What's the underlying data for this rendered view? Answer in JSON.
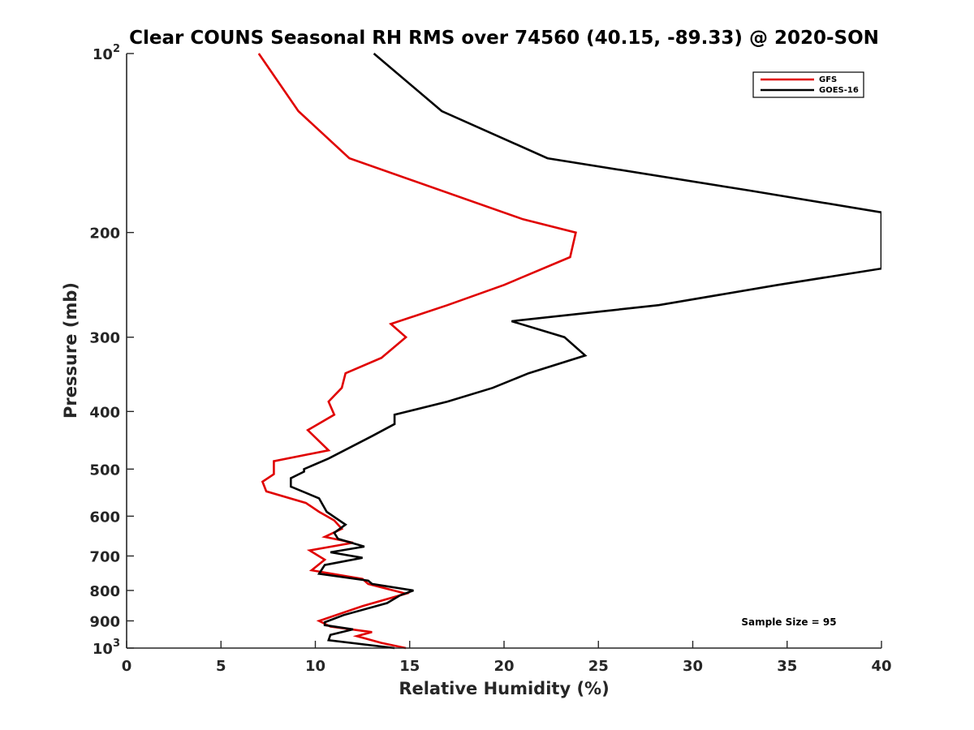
{
  "chart_data": {
    "type": "line",
    "title": "Clear COUNS Seasonal RH RMS over 74560 (40.15, -89.33) @ 2020-SON",
    "xlabel": "Relative Humidity (%)",
    "ylabel": "Pressure (mb)",
    "xlim": [
      0,
      40
    ],
    "ylim": [
      100,
      1000
    ],
    "yscale": "log",
    "yreversed": true,
    "xticks": [
      {
        "value": 0,
        "label": "0"
      },
      {
        "value": 5,
        "label": "5"
      },
      {
        "value": 10,
        "label": "10"
      },
      {
        "value": 15,
        "label": "15"
      },
      {
        "value": 20,
        "label": "20"
      },
      {
        "value": 25,
        "label": "25"
      },
      {
        "value": 30,
        "label": "30"
      },
      {
        "value": 35,
        "label": "35"
      },
      {
        "value": 40,
        "label": "40"
      }
    ],
    "yticks": [
      {
        "value": 100,
        "base": "10",
        "exp": "2"
      },
      {
        "value": 200,
        "base": "200",
        "exp": ""
      },
      {
        "value": 300,
        "base": "300",
        "exp": ""
      },
      {
        "value": 400,
        "base": "400",
        "exp": ""
      },
      {
        "value": 500,
        "base": "500",
        "exp": ""
      },
      {
        "value": 600,
        "base": "600",
        "exp": ""
      },
      {
        "value": 700,
        "base": "700",
        "exp": ""
      },
      {
        "value": 800,
        "base": "800",
        "exp": ""
      },
      {
        "value": 900,
        "base": "900",
        "exp": ""
      },
      {
        "value": 1000,
        "base": "10",
        "exp": "3"
      }
    ],
    "legend_position": "top-right",
    "annotation": "Sample Size = 95",
    "series": [
      {
        "name": "GFS",
        "color": "#e00000",
        "points": [
          [
            7.0,
            100
          ],
          [
            9.1,
            125
          ],
          [
            11.8,
            150
          ],
          [
            21.0,
            190
          ],
          [
            23.8,
            200
          ],
          [
            23.5,
            220
          ],
          [
            20.0,
            245
          ],
          [
            17.0,
            265
          ],
          [
            14.0,
            285
          ],
          [
            14.8,
            300
          ],
          [
            13.5,
            325
          ],
          [
            11.6,
            345
          ],
          [
            11.4,
            365
          ],
          [
            10.7,
            385
          ],
          [
            11.0,
            405
          ],
          [
            9.6,
            430
          ],
          [
            10.7,
            465
          ],
          [
            7.8,
            485
          ],
          [
            7.8,
            510
          ],
          [
            7.2,
            525
          ],
          [
            7.4,
            545
          ],
          [
            9.5,
            570
          ],
          [
            10.2,
            590
          ],
          [
            11.0,
            610
          ],
          [
            11.4,
            630
          ],
          [
            10.5,
            650
          ],
          [
            12.0,
            665
          ],
          [
            9.7,
            685
          ],
          [
            10.5,
            710
          ],
          [
            9.8,
            740
          ],
          [
            12.5,
            765
          ],
          [
            12.8,
            780
          ],
          [
            14.8,
            810
          ],
          [
            12.5,
            850
          ],
          [
            10.2,
            900
          ],
          [
            10.8,
            920
          ],
          [
            13.0,
            940
          ],
          [
            12.2,
            955
          ],
          [
            13.5,
            980
          ],
          [
            14.8,
            1000
          ]
        ]
      },
      {
        "name": "GOES-16",
        "color": "#000000",
        "points": [
          [
            13.1,
            100
          ],
          [
            16.7,
            125
          ],
          [
            22.3,
            150
          ],
          [
            33.0,
            170
          ],
          [
            40.0,
            185
          ],
          [
            40.0,
            230
          ],
          [
            34.5,
            245
          ],
          [
            28.2,
            265
          ],
          [
            20.4,
            282
          ],
          [
            23.2,
            300
          ],
          [
            24.3,
            322
          ],
          [
            21.3,
            345
          ],
          [
            19.4,
            365
          ],
          [
            17.0,
            385
          ],
          [
            14.2,
            405
          ],
          [
            14.2,
            420
          ],
          [
            13.0,
            440
          ],
          [
            10.7,
            480
          ],
          [
            9.4,
            500
          ],
          [
            9.4,
            505
          ],
          [
            8.7,
            518
          ],
          [
            8.7,
            535
          ],
          [
            10.2,
            560
          ],
          [
            10.6,
            590
          ],
          [
            11.6,
            620
          ],
          [
            11.0,
            640
          ],
          [
            11.2,
            655
          ],
          [
            12.6,
            675
          ],
          [
            10.8,
            690
          ],
          [
            12.5,
            705
          ],
          [
            10.5,
            725
          ],
          [
            10.2,
            750
          ],
          [
            12.8,
            770
          ],
          [
            13.0,
            780
          ],
          [
            15.2,
            800
          ],
          [
            14.5,
            815
          ],
          [
            13.8,
            840
          ],
          [
            11.5,
            880
          ],
          [
            10.5,
            905
          ],
          [
            10.5,
            915
          ],
          [
            12.0,
            930
          ],
          [
            10.8,
            950
          ],
          [
            10.7,
            970
          ],
          [
            14.2,
            1000
          ]
        ]
      }
    ]
  }
}
